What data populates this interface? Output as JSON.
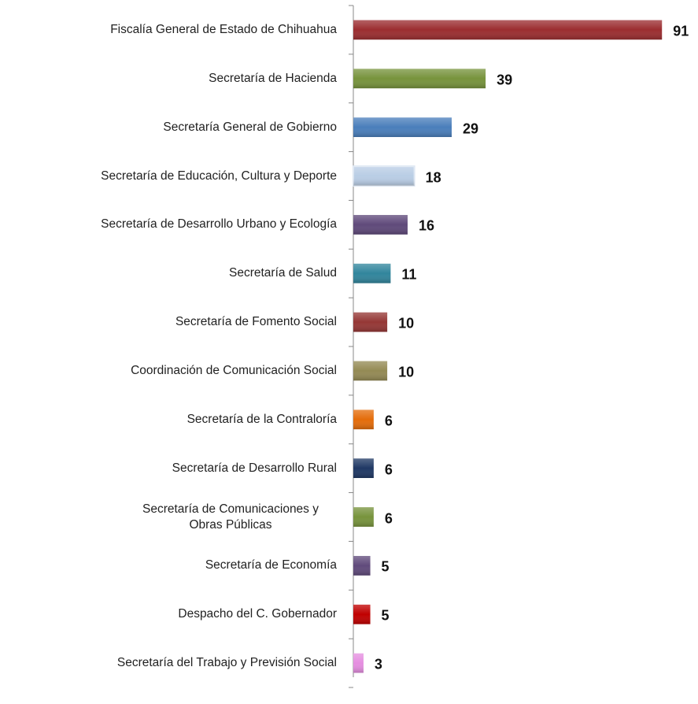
{
  "chart_data": {
    "type": "bar",
    "orientation": "horizontal",
    "categories": [
      "Fiscalía General de Estado de Chihuahua",
      "Secretaría de Hacienda",
      "Secretaría General de Gobierno",
      "Secretaría de Educación, Cultura y Deporte",
      "Secretaría de Desarrollo Urbano y Ecología",
      "Secretaría de Salud",
      "Secretaría de Fomento Social",
      "Coordinación de Comunicación Social",
      "Secretaría de la Contraloría",
      "Secretaría de Desarrollo Rural",
      "Secretaría de Comunicaciones y Obras Públicas",
      "Secretaría de Economía",
      "Despacho del C. Gobernador",
      "Secretaría del Trabajo y Previsión Social"
    ],
    "values": [
      91,
      39,
      29,
      18,
      16,
      11,
      10,
      10,
      6,
      6,
      6,
      5,
      5,
      3
    ],
    "colors": [
      "#9b2d30",
      "#77933c",
      "#4a7ebb",
      "#b9cde5",
      "#5f497a",
      "#31859c",
      "#953735",
      "#948a54",
      "#e46c0a",
      "#1f3864",
      "#77933c",
      "#604a7b",
      "#c00000",
      "#e58ee0"
    ],
    "xlim": [
      0,
      100
    ]
  }
}
